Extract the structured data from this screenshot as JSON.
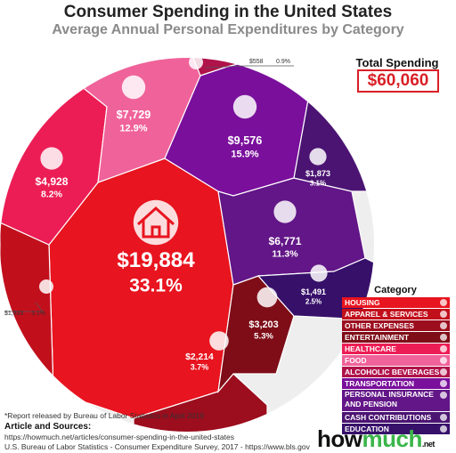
{
  "title": "Consumer Spending in the United States",
  "subtitle": "Average Annual Personal Expenditures by Category",
  "total_label": "Total Spending",
  "total_value": "$60,060",
  "legend_title": "Category",
  "chart_data": {
    "type": "voronoi-treemap",
    "title": "Consumer Spending in the United States",
    "subtitle": "Average Annual Personal Expenditures by Category",
    "unit": "USD per year",
    "total": 60060,
    "slices": [
      {
        "category": "HOUSING",
        "value": 19884,
        "label": "$19,884",
        "pct": "33.1%",
        "color": "#e8141f",
        "icon": "house-icon"
      },
      {
        "category": "APPAREL & SERVICES",
        "value": 1833,
        "label": "$1,833",
        "pct": "3.1%",
        "color": "#c20f1c",
        "icon": "shirt-icon"
      },
      {
        "category": "OTHER EXPENSES",
        "value": 2214,
        "label": "$2,214",
        "pct": "3.7%",
        "color": "#9c0d1e",
        "icon": "coin-icon"
      },
      {
        "category": "ENTERTAINMENT",
        "value": 3203,
        "label": "$3,203",
        "pct": "5.3%",
        "color": "#7e0d18",
        "icon": "theater-masks-icon"
      },
      {
        "category": "HEALTHCARE",
        "value": 4928,
        "label": "$4,928",
        "pct": "8.2%",
        "color": "#ec1d55",
        "icon": "health-hand-icon"
      },
      {
        "category": "FOOD",
        "value": 7729,
        "label": "$7,729",
        "pct": "12.9%",
        "color": "#f0629a",
        "icon": "fork-knife-icon"
      },
      {
        "category": "ALCOHOLIC BEVERAGES",
        "value": 558,
        "label": "$558",
        "pct": "0.9%",
        "color": "#b0124a",
        "icon": "bottles-icon"
      },
      {
        "category": "TRANSPORTATION",
        "value": 9576,
        "label": "$9,576",
        "pct": "15.9%",
        "color": "#7a0f9c",
        "icon": "bus-car-icon"
      },
      {
        "category": "PERSONAL INSURANCE AND PENSION",
        "value": 6771,
        "label": "$6,771",
        "pct": "11.3%",
        "color": "#621687",
        "icon": "umbrella-money-icon"
      },
      {
        "category": "CASH CONTRIBUTIONS",
        "value": 1873,
        "label": "$1,873",
        "pct": "3.1%",
        "color": "#4b1472",
        "icon": "hand-coin-icon"
      },
      {
        "category": "EDUCATION",
        "value": 1491,
        "label": "$1,491",
        "pct": "2.5%",
        "color": "#37106a",
        "icon": "graduate-icon"
      }
    ]
  },
  "legend": [
    {
      "label": "HOUSING",
      "color": "#e8141f"
    },
    {
      "label": "APPAREL & SERVICES",
      "color": "#c20f1c"
    },
    {
      "label": "OTHER EXPENSES",
      "color": "#9c0d1e"
    },
    {
      "label": "ENTERTAINMENT",
      "color": "#7e0d18"
    },
    {
      "label": "HEALTHCARE",
      "color": "#ec1d55"
    },
    {
      "label": "FOOD",
      "color": "#f0629a"
    },
    {
      "label": "ALCOHOLIC BEVERAGES",
      "color": "#b0124a"
    },
    {
      "label": "TRANSPORTATION",
      "color": "#7a0f9c"
    },
    {
      "label": "PERSONAL INSURANCE AND PENSION",
      "color": "#621687"
    },
    {
      "label": "CASH CONTRIBUTIONS",
      "color": "#4b1472"
    },
    {
      "label": "EDUCATION",
      "color": "#37106a"
    }
  ],
  "footer": {
    "note": "*Report released by Bureau of Labor Statistics  in April 2019",
    "sources_title": "Article and Sources:",
    "source1": "https://howmuch.net/articles/consumer-spending-in-the-united-states",
    "source2": "U.S. Bureau of Labor Statistics - Consumer Expenditure Survey, 2017 - https://www.bls.gov"
  },
  "logo": {
    "part1": "how",
    "part2": "much",
    "suffix": ".net"
  }
}
